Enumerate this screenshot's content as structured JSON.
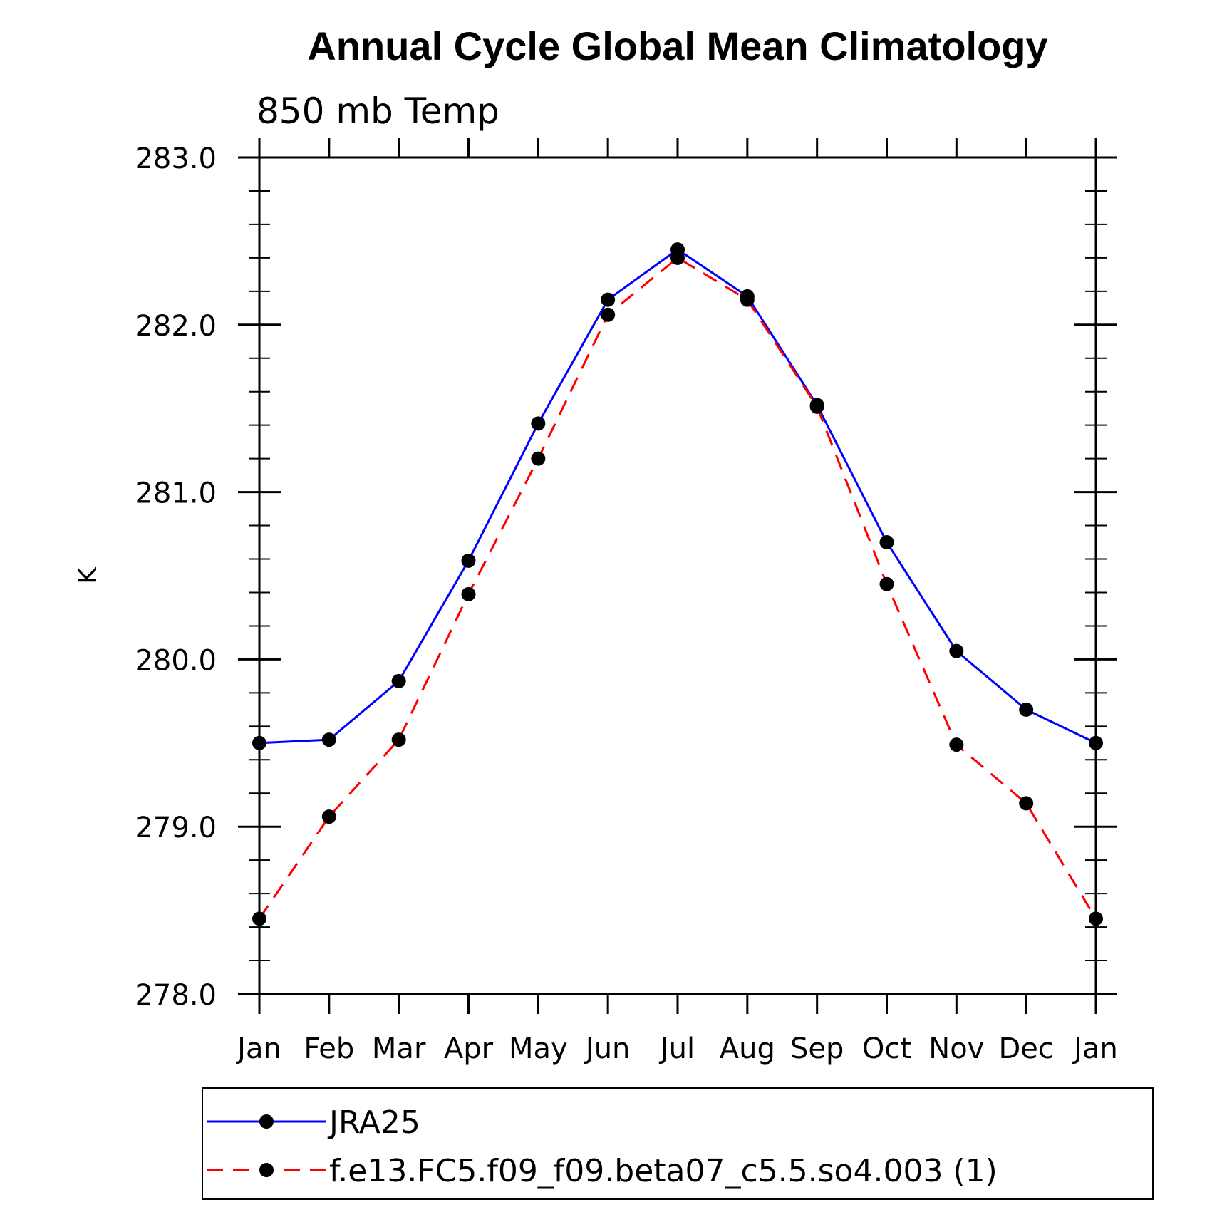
{
  "chart_data": {
    "type": "line",
    "title": "Annual Cycle Global Mean Climatology",
    "subtitle": "850 mb Temp",
    "ylabel": "K",
    "xlabel": "",
    "categories": [
      "Jan",
      "Feb",
      "Mar",
      "Apr",
      "May",
      "Jun",
      "Jul",
      "Aug",
      "Sep",
      "Oct",
      "Nov",
      "Dec",
      "Jan"
    ],
    "ylim": [
      278.0,
      283.0
    ],
    "yticks": [
      "278.0",
      "279.0",
      "280.0",
      "281.0",
      "282.0",
      "283.0"
    ],
    "y_minor_step": 0.2,
    "grid": false,
    "legend_position": "bottom",
    "series": [
      {
        "name": "JRA25",
        "color": "#0000ff",
        "dash": "solid",
        "marker": "filled-circle",
        "values": [
          279.5,
          279.52,
          279.87,
          280.59,
          281.41,
          282.15,
          282.45,
          282.17,
          281.52,
          280.7,
          280.05,
          279.7,
          279.5
        ]
      },
      {
        "name": "f.e13.FC5.f09_f09.beta07_c5.5.so4.003 (1)",
        "color": "#ff0000",
        "dash": "dashed",
        "marker": "filled-circle",
        "values": [
          278.45,
          279.06,
          279.52,
          280.39,
          281.2,
          282.06,
          282.4,
          282.15,
          281.51,
          280.45,
          279.49,
          279.14,
          278.45
        ]
      }
    ]
  }
}
